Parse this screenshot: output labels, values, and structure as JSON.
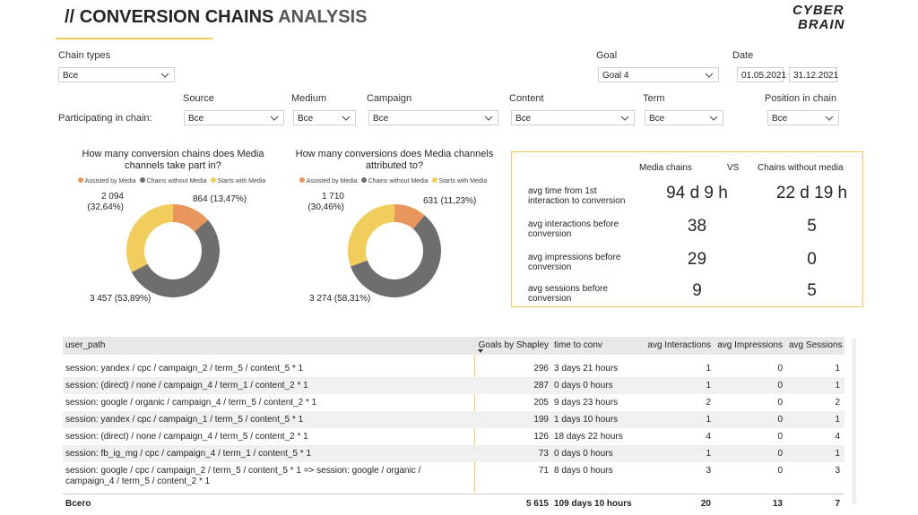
{
  "header": {
    "title_prefix": "//",
    "title_main": "CONVERSION CHAINS",
    "title_accent": "ANALYSIS",
    "logo": [
      "CYBER",
      "BRAIN"
    ]
  },
  "filters": {
    "participating_label": "Participating in chain:",
    "items": [
      {
        "label": "Chain types",
        "value": "Все"
      },
      {
        "label": "Goal",
        "value": "Goal 4"
      },
      {
        "label": "Source",
        "value": "Все"
      },
      {
        "label": "Medium",
        "value": "Все"
      },
      {
        "label": "Campaign",
        "value": "Все"
      },
      {
        "label": "Content",
        "value": "Все"
      },
      {
        "label": "Term",
        "value": "Все"
      },
      {
        "label": "Position in chain",
        "value": "Все"
      }
    ],
    "date": {
      "label": "Date",
      "from": "01.05.2021",
      "to": "31.12.2021"
    }
  },
  "chart_data": [
    {
      "type": "donut",
      "title": "How many conversion chains does Media channels take part in?",
      "categories": [
        "Assisted by Media",
        "Chains without Media",
        "Starts with Media"
      ],
      "values": [
        864,
        3457,
        2094
      ],
      "value_labels": [
        "864 (13,47%)",
        "3 457 (53,89%)",
        "2 094 (32,64%)"
      ],
      "colors": [
        "#e9965c",
        "#6e6e6e",
        "#f1cd5b"
      ]
    },
    {
      "type": "donut",
      "title": "How many conversions does Media channels attributed to?",
      "categories": [
        "Assisted by Media",
        "Chains without Media",
        "Starts with Media"
      ],
      "values": [
        631,
        3274,
        1710
      ],
      "value_labels": [
        "631 (11,23%)",
        "3 274 (58,31%)",
        "1 710 (30,46%)"
      ],
      "colors": [
        "#e9965c",
        "#6e6e6e",
        "#f1cd5b"
      ]
    }
  ],
  "kpi": {
    "col_media": "Media chains",
    "vs": "VS",
    "col_without": "Chains without media",
    "rows": [
      {
        "label": "avg time from 1st interaction to conversion",
        "media": "94 d 9 h",
        "without": "22 d 19 h"
      },
      {
        "label": "avg interactions before conversion",
        "media": "38",
        "without": "5"
      },
      {
        "label": "avg impressions before conversion",
        "media": "29",
        "without": "0"
      },
      {
        "label": "avg sessions before conversion",
        "media": "9",
        "without": "5"
      }
    ]
  },
  "table": {
    "columns": [
      "user_path",
      "Goals by Shapley",
      "time to conv",
      "avg Interactions",
      "avg Impressions",
      "avg Sessions"
    ],
    "rows": [
      [
        "session: yandex / cpc / campaign_2 / term_5 / content_5 * 1",
        "296",
        "3 days 21 hours",
        "1",
        "0",
        "1"
      ],
      [
        "session: (direct) / none / campaign_4 / term_1 / content_2 * 1",
        "287",
        "0 days 0 hours",
        "1",
        "0",
        "1"
      ],
      [
        "session: google / organic / campaign_4 / term_5 / content_2 * 1",
        "205",
        "9 days 23 hours",
        "2",
        "0",
        "2"
      ],
      [
        "session: yandex / cpc / campaign_1 / term_5 / content_5 * 1",
        "199",
        "1 days 10 hours",
        "1",
        "0",
        "1"
      ],
      [
        "session: (direct) / none / campaign_4 / term_5 / content_2 * 1",
        "126",
        "18 days 22 hours",
        "4",
        "0",
        "4"
      ],
      [
        "session: fb_ig_mg / cpc / campaign_4 / term_1 / content_5 * 1",
        "73",
        "0 days 0 hours",
        "1",
        "0",
        "1"
      ],
      [
        "session: google / cpc / campaign_2 / term_5 / content_5 * 1 => session: google / organic / campaign_4 / term_5 / content_2 * 1",
        "71",
        "8 days 0 hours",
        "3",
        "0",
        "3"
      ]
    ],
    "total": [
      "Всего",
      "5 615",
      "109 days 10 hours",
      "20",
      "13",
      "7"
    ]
  }
}
